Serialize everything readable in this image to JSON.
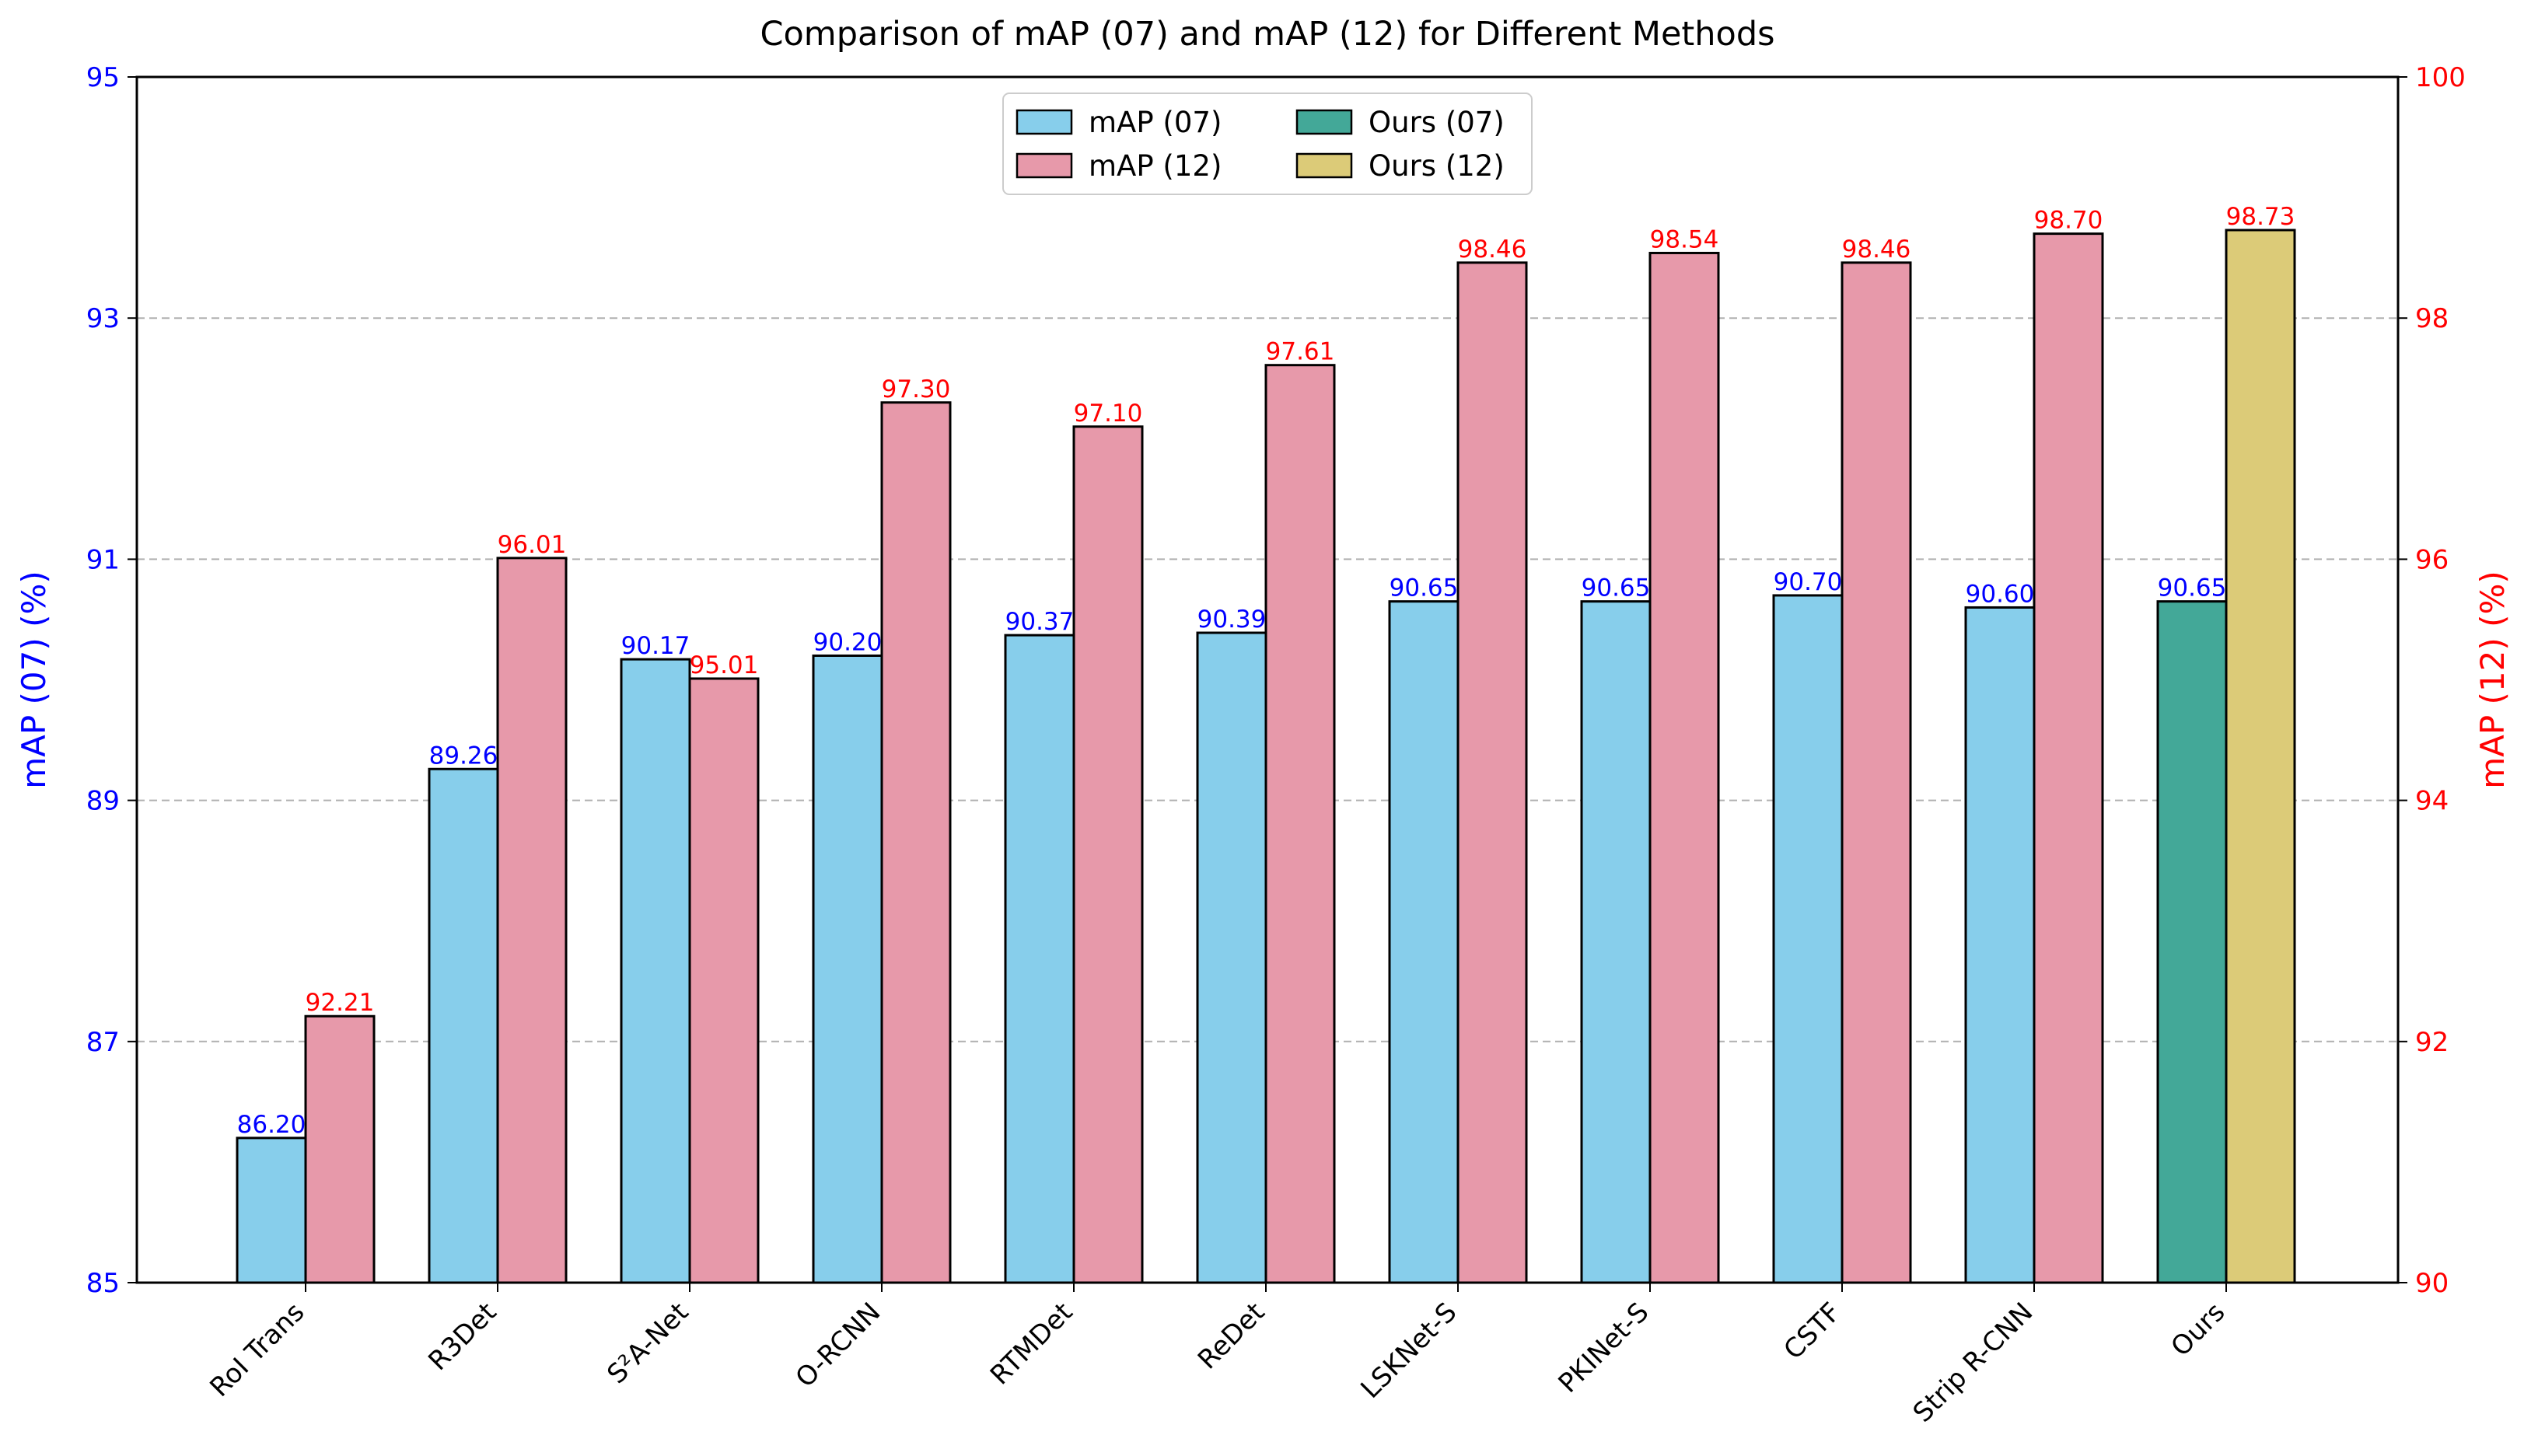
{
  "chart_data": {
    "type": "bar",
    "title": "Comparison of mAP (07) and mAP (12) for Different Methods",
    "categories": [
      "RoI Trans",
      "R3Det",
      "S²A-Net",
      "O-RCNN",
      "RTMDet",
      "ReDet",
      "LSKNet-S",
      "PKINet-S",
      "CSTF",
      "Strip R-CNN",
      "Ours"
    ],
    "series": [
      {
        "name": "mAP (07)",
        "axis": "left",
        "color": "#87CEEB",
        "label_color": "#0000FF",
        "values": [
          86.2,
          89.26,
          90.17,
          90.2,
          90.37,
          90.39,
          90.65,
          90.65,
          90.7,
          90.6,
          90.65
        ],
        "labels": [
          "86.20",
          "89.26",
          "90.17",
          "90.20",
          "90.37",
          "90.39",
          "90.65",
          "90.65",
          "90.70",
          "90.60",
          "90.65"
        ]
      },
      {
        "name": "mAP (12)",
        "axis": "right",
        "color": "#E799AA",
        "label_color": "#FF0000",
        "values": [
          92.21,
          96.01,
          95.01,
          97.3,
          97.1,
          97.61,
          98.46,
          98.54,
          98.46,
          98.7,
          98.73
        ],
        "labels": [
          "92.21",
          "96.01",
          "95.01",
          "97.30",
          "97.10",
          "97.61",
          "98.46",
          "98.54",
          "98.46",
          "98.70",
          "98.73"
        ]
      }
    ],
    "highlight": {
      "category": "Ours",
      "ours07_name": "Ours (07)",
      "ours07_color": "#43A898",
      "ours12_name": "Ours (12)",
      "ours12_color": "#DCCB78"
    },
    "left_axis": {
      "label": "mAP (07) (%)",
      "ylim": [
        85,
        95
      ],
      "ticks": [
        85,
        87,
        89,
        91,
        93,
        95
      ],
      "color": "#0000FF"
    },
    "right_axis": {
      "label": "mAP (12) (%)",
      "ylim": [
        90,
        100
      ],
      "ticks": [
        90,
        92,
        94,
        96,
        98,
        100
      ],
      "color": "#FF0000"
    },
    "grid": true,
    "legend": {
      "placement": "upper-center",
      "entries": [
        {
          "label": "mAP (07)",
          "color": "#87CEEB"
        },
        {
          "label": "mAP (12)",
          "color": "#E799AA"
        },
        {
          "label": "Ours (07)",
          "color": "#43A898"
        },
        {
          "label": "Ours (12)",
          "color": "#DCCB78"
        }
      ]
    }
  }
}
